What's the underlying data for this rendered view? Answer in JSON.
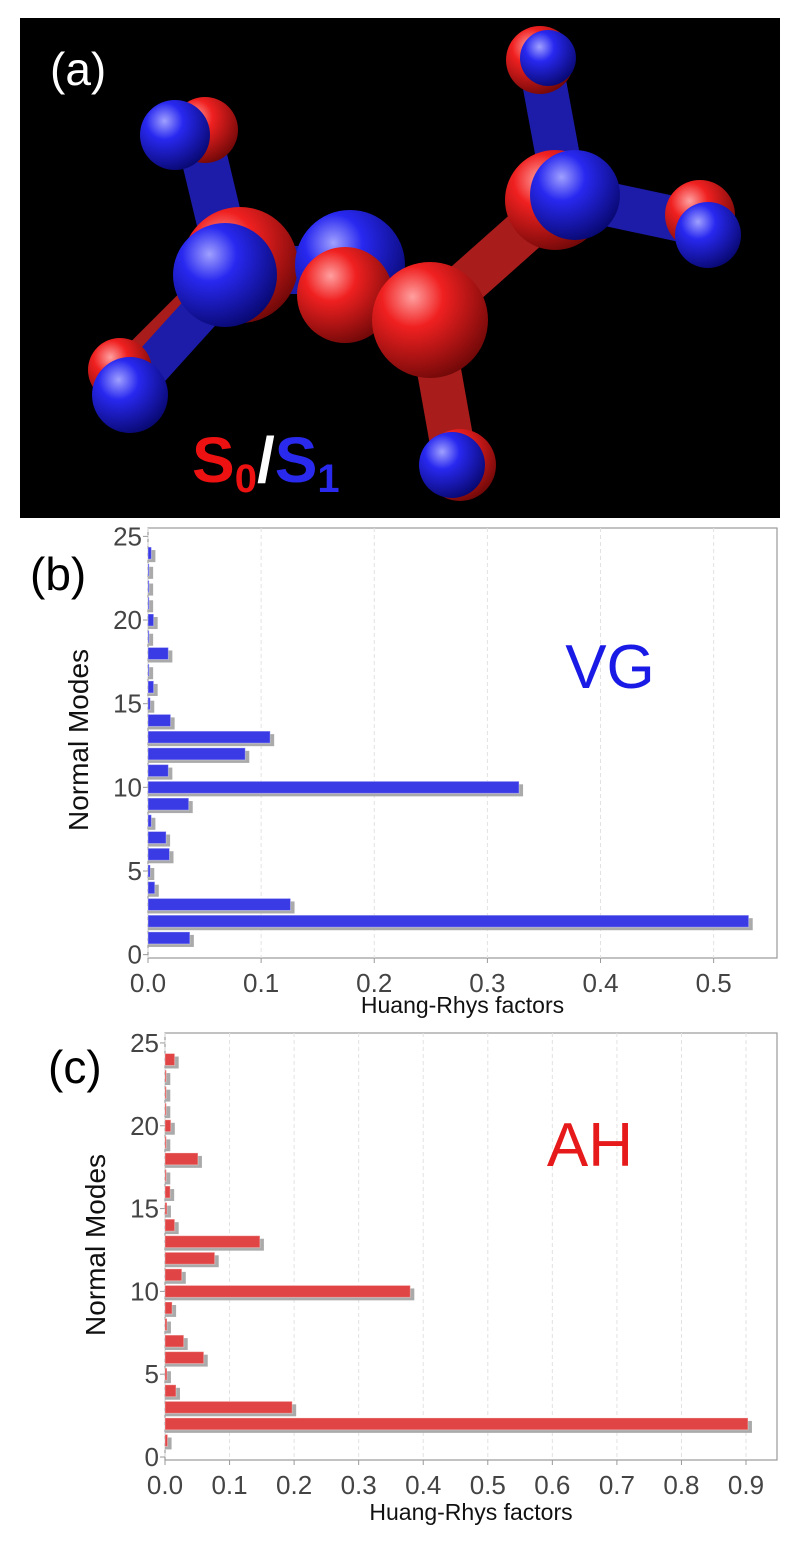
{
  "panel_a": {
    "label": "(a)",
    "legend": {
      "first": {
        "symbol": "S",
        "subscript": "0",
        "color": "#ee1111"
      },
      "separator": "/",
      "second": {
        "symbol": "S",
        "subscript": "1",
        "color": "#2a2aee"
      }
    }
  },
  "chart_data": [
    {
      "type": "bar",
      "orientation": "horizontal",
      "panel_label": "(b)",
      "annotation": "VG",
      "annotation_color": "#1a1ae6",
      "xlabel": "Huang-Rhys factors",
      "ylabel": "Normal Modes",
      "y": [
        1,
        2,
        3,
        4,
        5,
        6,
        7,
        8,
        9,
        10,
        11,
        12,
        13,
        14,
        15,
        16,
        17,
        18,
        19,
        20,
        21,
        22,
        23,
        24
      ],
      "values": [
        0.037,
        0.531,
        0.126,
        0.006,
        0.002,
        0.019,
        0.016,
        0.003,
        0.036,
        0.328,
        0.018,
        0.086,
        0.108,
        0.02,
        0.002,
        0.005,
        0.001,
        0.018,
        0.001,
        0.005,
        0.001,
        0.001,
        0.001,
        0.003
      ],
      "color": "#3b3be6",
      "xlim": [
        0,
        0.556
      ],
      "xticks": [
        {
          "value": 0,
          "label": "0.0"
        },
        0.1,
        0.2,
        0.3,
        0.4,
        0.5
      ],
      "ylim": [
        -0.2,
        25.5
      ],
      "yticks": [
        0,
        5,
        10,
        15,
        20,
        25
      ],
      "grid": true
    },
    {
      "type": "bar",
      "orientation": "horizontal",
      "panel_label": "(c)",
      "annotation": "AH",
      "annotation_color": "#e61a1a",
      "xlabel": "Huang-Rhys factors",
      "ylabel": "Normal Modes",
      "y": [
        1,
        2,
        3,
        4,
        5,
        6,
        7,
        8,
        9,
        10,
        11,
        12,
        13,
        14,
        15,
        16,
        17,
        18,
        19,
        20,
        21,
        22,
        23,
        24
      ],
      "values": [
        0.004,
        0.903,
        0.197,
        0.017,
        0.003,
        0.06,
        0.029,
        0.003,
        0.011,
        0.38,
        0.026,
        0.077,
        0.147,
        0.015,
        0.003,
        0.008,
        0.002,
        0.051,
        0.002,
        0.009,
        0.002,
        0.002,
        0.002,
        0.015
      ],
      "color": "#e04444",
      "xlim": [
        0,
        0.948
      ],
      "xticks": [
        {
          "value": 0,
          "label": "0.0"
        },
        0.1,
        0.2,
        0.3,
        0.4,
        0.5,
        0.6,
        0.7,
        0.8,
        0.9
      ],
      "ylim": [
        -0.18,
        25.6
      ],
      "yticks": [
        0,
        5,
        10,
        15,
        20,
        25
      ],
      "grid": true
    }
  ]
}
